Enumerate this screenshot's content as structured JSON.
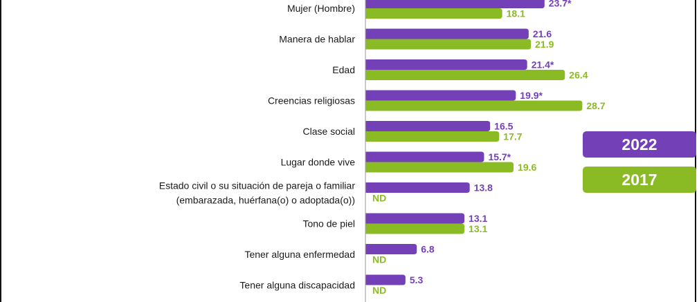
{
  "chart_data": {
    "type": "bar",
    "orientation": "horizontal",
    "categories": [
      [
        "Mujer (Hombre)"
      ],
      [
        "Manera de hablar"
      ],
      [
        "Edad"
      ],
      [
        "Creencias religiosas"
      ],
      [
        "Clase social"
      ],
      [
        "Lugar donde vive"
      ],
      [
        "Estado civil o su situación de pareja o familiar",
        "(embarazada, huérfana(o) o adoptada(o))"
      ],
      [
        "Tono de piel"
      ],
      [
        "Tener alguna enfermedad"
      ],
      [
        "Tener alguna discapacidad"
      ]
    ],
    "series": [
      {
        "name": "2022",
        "color": "#7440b8",
        "values": [
          23.7,
          21.6,
          21.4,
          19.9,
          16.5,
          15.7,
          13.8,
          13.1,
          6.8,
          5.3
        ],
        "labels": [
          "23.7*",
          "21.6",
          "21.4*",
          "19.9*",
          "16.5",
          "15.7*",
          "13.8",
          "13.1",
          "6.8",
          "5.3"
        ]
      },
      {
        "name": "2017",
        "color": "#8bbb24",
        "values": [
          18.1,
          21.9,
          26.4,
          28.7,
          17.7,
          19.6,
          null,
          13.1,
          null,
          null
        ],
        "labels": [
          "18.1",
          "21.9",
          "26.4",
          "28.7",
          "17.7",
          "19.6",
          "ND",
          "13.1",
          "ND",
          "ND"
        ]
      }
    ],
    "legend_position": "right",
    "grid": false
  }
}
